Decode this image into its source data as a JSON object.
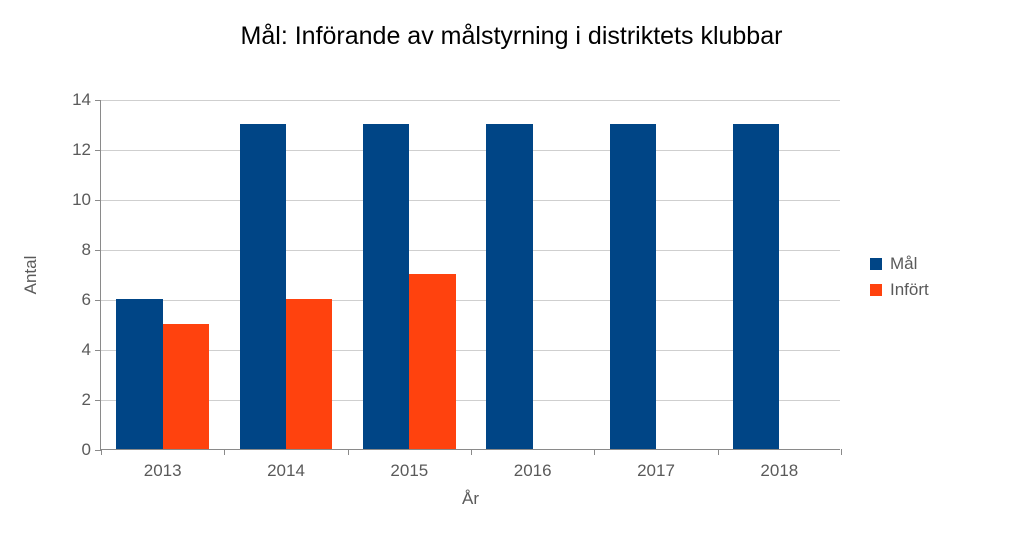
{
  "chart": {
    "type": "bar",
    "title": "Mål: Införande av målstyrning i distriktets klubbar",
    "title_fontsize": 25,
    "title_color": "#000000",
    "xlabel": "År",
    "ylabel": "Antal",
    "label_fontsize": 17,
    "tick_fontsize": 17,
    "background_color": "#ffffff",
    "grid_color": "#cfcfcf",
    "axis_color": "#8a8a8a",
    "categories": [
      "2013",
      "2014",
      "2015",
      "2016",
      "2017",
      "2018"
    ],
    "ylim": [
      0,
      14
    ],
    "ytick_step": 2,
    "bar_group_gap": 0.25,
    "series": [
      {
        "name": "Mål",
        "color": "#004586",
        "values": [
          6,
          13,
          13,
          13,
          13,
          13
        ]
      },
      {
        "name": "Infört",
        "color": "#ff420e",
        "values": [
          5,
          6,
          7,
          null,
          null,
          null
        ]
      }
    ],
    "legend": {
      "position": "right",
      "fontsize": 17
    }
  }
}
